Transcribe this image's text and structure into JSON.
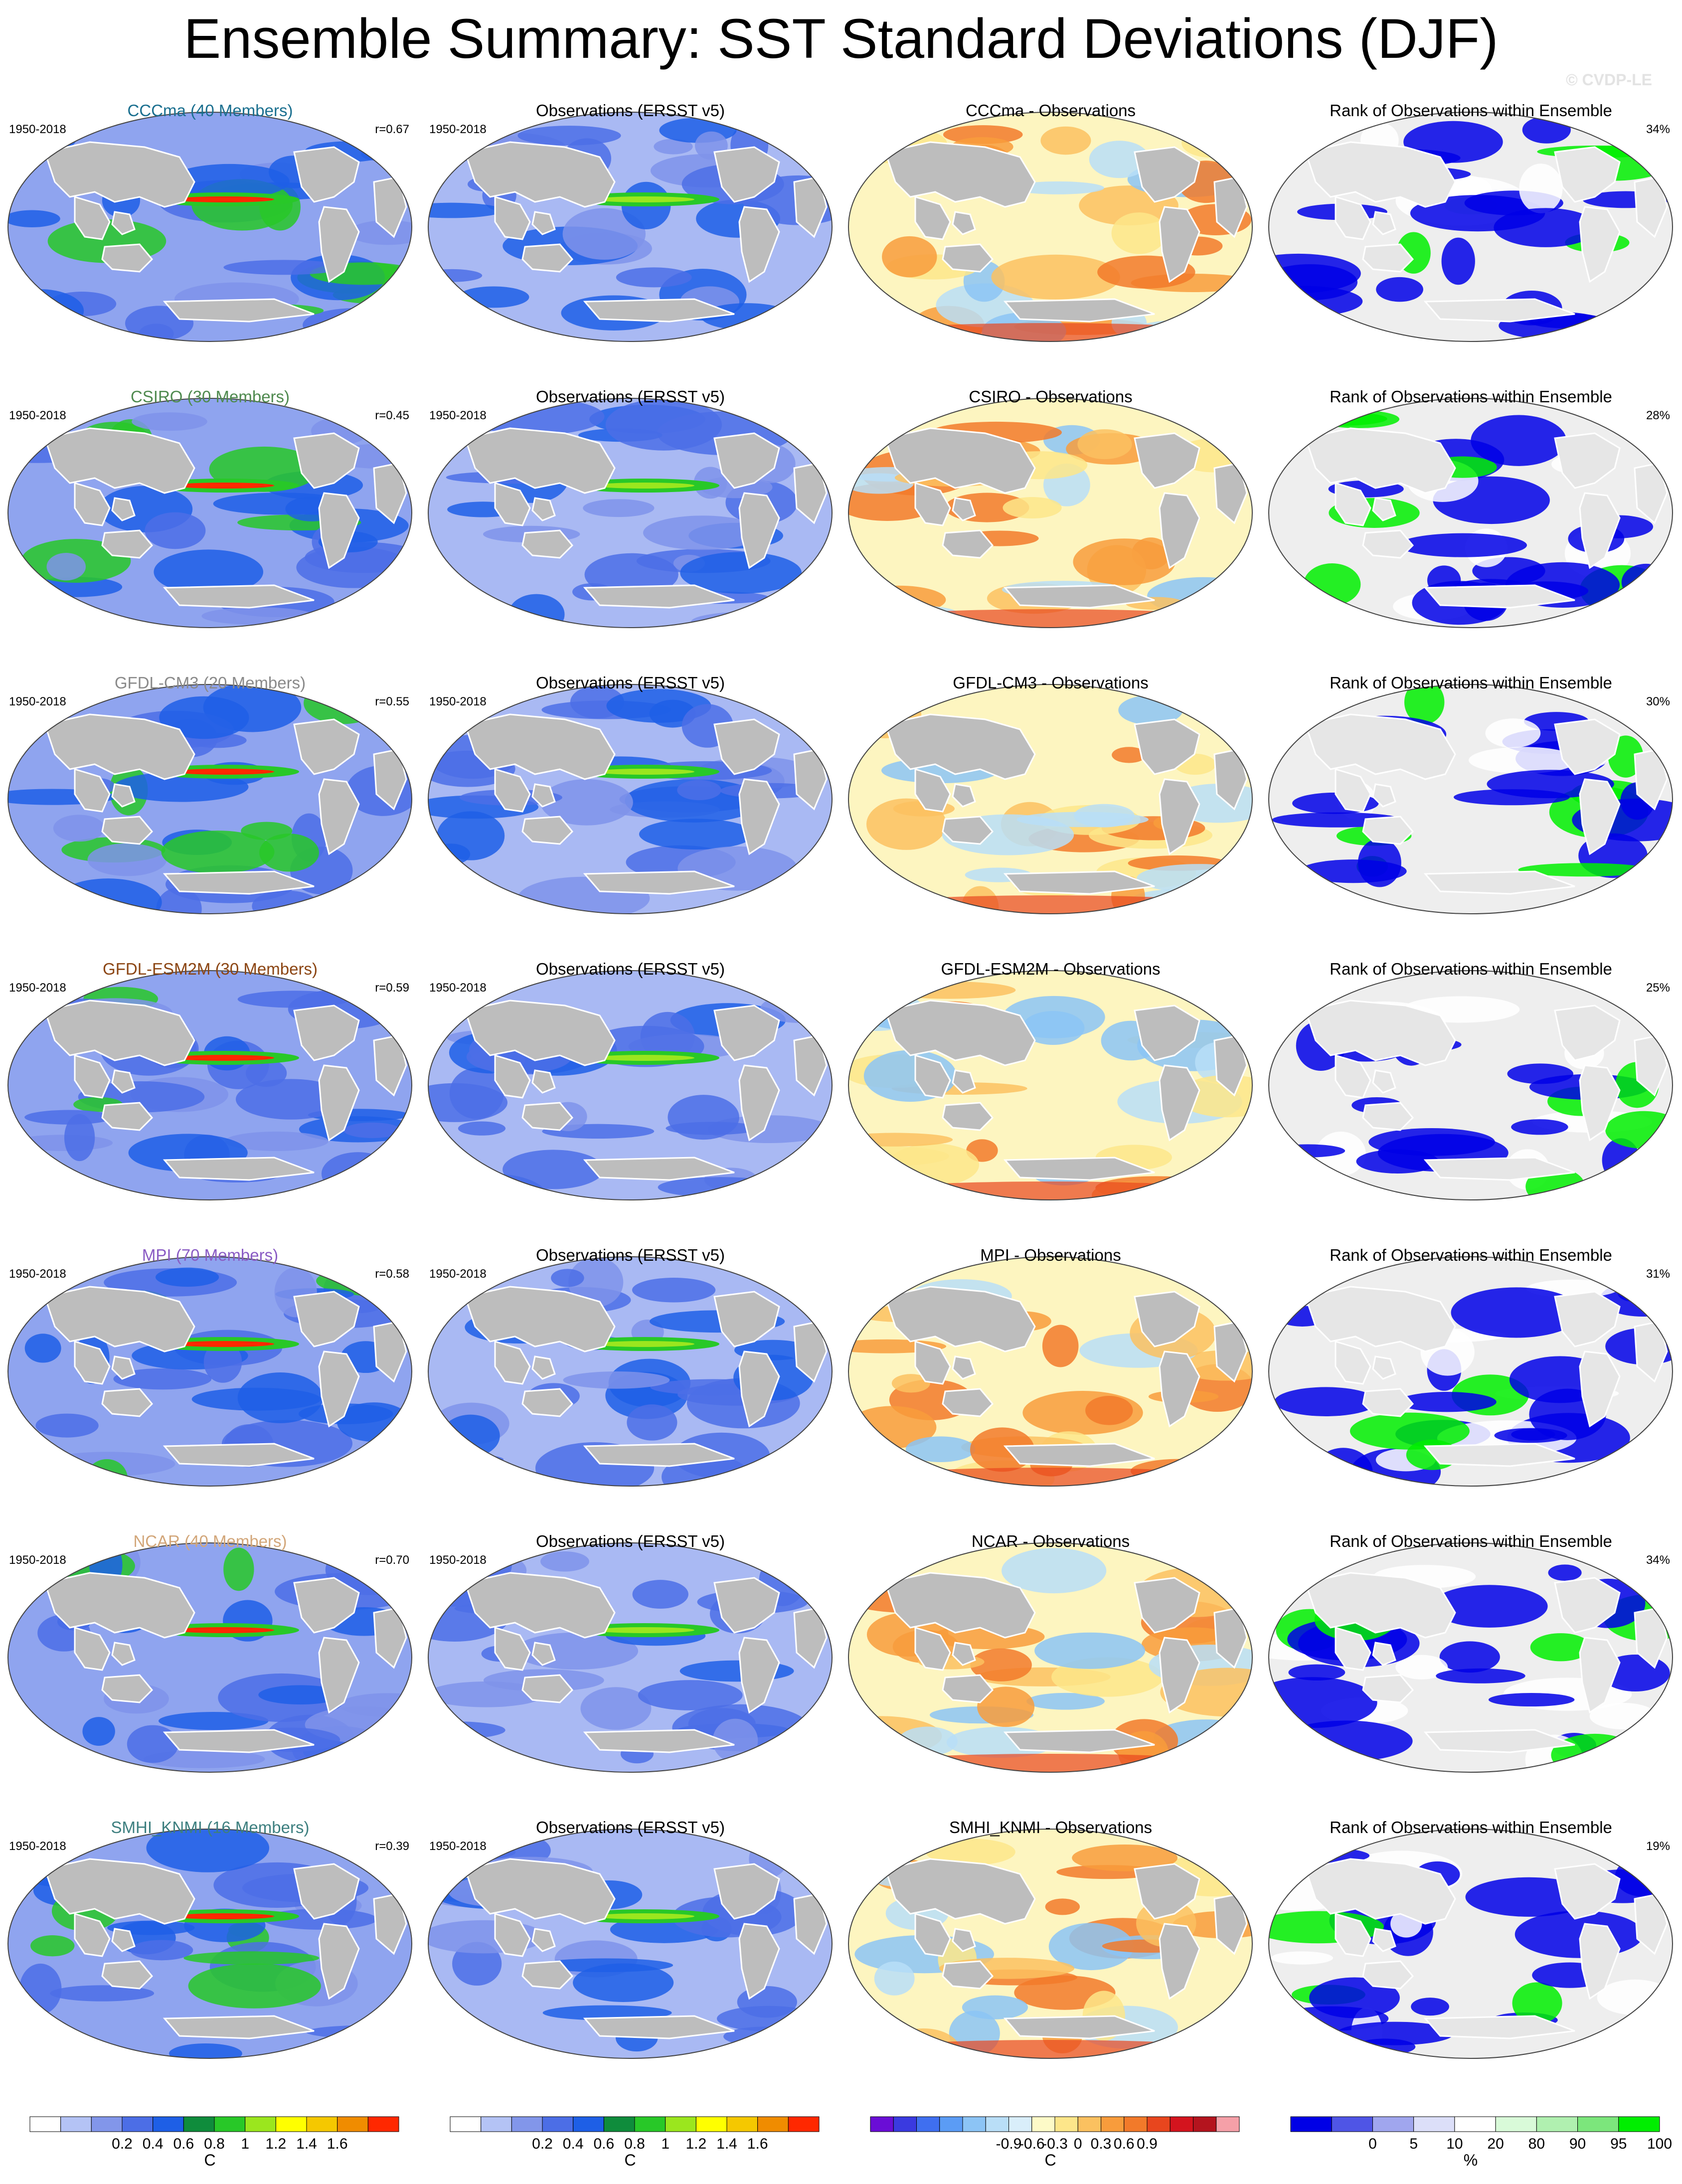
{
  "title": "Ensemble Summary: SST Standard Deviations (DJF)",
  "watermark": "© CVDP-LE",
  "rows": [
    {
      "model": "CCCma (40 Members)",
      "model_color": "#1a6f8f",
      "period": "1950-2018",
      "r": "r=0.67",
      "obs": "Observations (ERSST v5)",
      "obs_period": "1950-2018",
      "diff": "CCCma - Observations",
      "rank": "Rank of Observations within Ensemble",
      "pct": "34%"
    },
    {
      "model": "CSIRO (30 Members)",
      "model_color": "#4f8a4f",
      "period": "1950-2018",
      "r": "r=0.45",
      "obs": "Observations (ERSST v5)",
      "obs_period": "1950-2018",
      "diff": "CSIRO - Observations",
      "rank": "Rank of Observations within Ensemble",
      "pct": "28%"
    },
    {
      "model": "GFDL-CM3 (20 Members)",
      "model_color": "#8a8a8a",
      "period": "1950-2018",
      "r": "r=0.55",
      "obs": "Observations (ERSST v5)",
      "obs_period": "1950-2018",
      "diff": "GFDL-CM3 - Observations",
      "rank": "Rank of Observations within Ensemble",
      "pct": "30%"
    },
    {
      "model": "GFDL-ESM2M (30 Members)",
      "model_color": "#8b4513",
      "period": "1950-2018",
      "r": "r=0.59",
      "obs": "Observations (ERSST v5)",
      "obs_period": "1950-2018",
      "diff": "GFDL-ESM2M - Observations",
      "rank": "Rank of Observations within Ensemble",
      "pct": "25%"
    },
    {
      "model": "MPI (70 Members)",
      "model_color": "#8a5cc4",
      "period": "1950-2018",
      "r": "r=0.58",
      "obs": "Observations (ERSST v5)",
      "obs_period": "1950-2018",
      "diff": "MPI - Observations",
      "rank": "Rank of Observations within Ensemble",
      "pct": "31%"
    },
    {
      "model": "NCAR (40 Members)",
      "model_color": "#d2a679",
      "period": "1950-2018",
      "r": "r=0.70",
      "obs": "Observations (ERSST v5)",
      "obs_period": "1950-2018",
      "diff": "NCAR - Observations",
      "rank": "Rank of Observations within Ensemble",
      "pct": "34%"
    },
    {
      "model": "SMHI_KNMI (16 Members)",
      "model_color": "#3d7f7f",
      "period": "1950-2018",
      "r": "r=0.39",
      "obs": "Observations (ERSST v5)",
      "obs_period": "1950-2018",
      "diff": "SMHI_KNMI - Observations",
      "rank": "Rank of Observations within Ensemble",
      "pct": "19%"
    }
  ],
  "colorbars": [
    {
      "unit": "C",
      "labels": [
        "0.2",
        "0.4",
        "0.6",
        "0.8",
        "1",
        "1.2",
        "1.4",
        "1.6"
      ],
      "colors": [
        "#ffffff",
        "#b4c3f5",
        "#8296ea",
        "#4c6ee6",
        "#1e5fe6",
        "#0f8c3c",
        "#28c828",
        "#9be61e",
        "#ffff00",
        "#f5c800",
        "#f08c00",
        "#ff2800"
      ]
    },
    {
      "unit": "C",
      "labels": [
        "0.2",
        "0.4",
        "0.6",
        "0.8",
        "1",
        "1.2",
        "1.4",
        "1.6"
      ],
      "colors": [
        "#ffffff",
        "#b4c3f5",
        "#8296ea",
        "#4c6ee6",
        "#1e5fe6",
        "#0f8c3c",
        "#28c828",
        "#9be61e",
        "#ffff00",
        "#f5c800",
        "#f08c00",
        "#ff2800"
      ]
    },
    {
      "unit": "C",
      "labels": [
        "-0.9",
        "-0.6",
        "-0.3",
        "0",
        "0.3",
        "0.6",
        "0.9"
      ],
      "colors": [
        "#6a0dd6",
        "#3a3ae0",
        "#3f6ff0",
        "#5b9cf5",
        "#8cc4f5",
        "#b9def7",
        "#d9eefa",
        "#fdfac8",
        "#fde68a",
        "#fbc160",
        "#f89c3c",
        "#f27a2a",
        "#e8461e",
        "#d4141e",
        "#b4141e",
        "#f5a0a8"
      ]
    },
    {
      "unit": "%",
      "labels": [
        "0",
        "5",
        "10",
        "20",
        "80",
        "90",
        "95",
        "100"
      ],
      "colors": [
        "#0000e6",
        "#4f55e6",
        "#a0a6ee",
        "#dcdff9",
        "#ffffff",
        "#d9fad9",
        "#b0f0b0",
        "#7ce67c",
        "#00ee00"
      ]
    }
  ]
}
